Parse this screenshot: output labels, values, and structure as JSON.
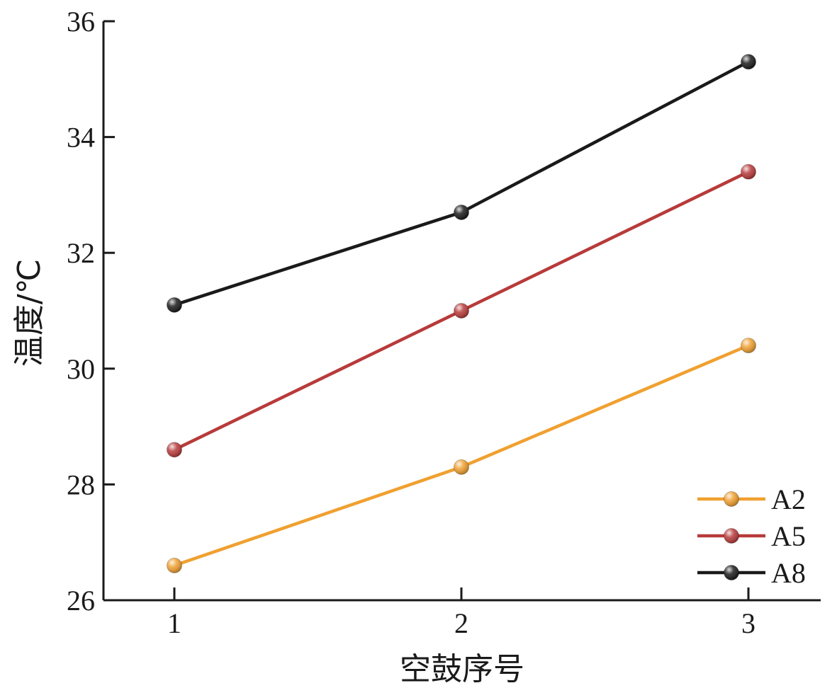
{
  "chart_data": {
    "type": "line",
    "xlabel": "空鼓序号",
    "ylabel": "温度/℃",
    "x": [
      1,
      2,
      3
    ],
    "x_tick_labels": [
      "1",
      "2",
      "3"
    ],
    "ylim": [
      26,
      36
    ],
    "y_ticks": [
      26,
      28,
      30,
      32,
      34,
      36
    ],
    "y_tick_labels": [
      "26",
      "28",
      "30",
      "32",
      "34",
      "36"
    ],
    "grid": false,
    "legend_position": "bottom-right",
    "series": [
      {
        "name": "A2",
        "color": "#f0a030",
        "values": [
          26.6,
          28.3,
          30.4
        ]
      },
      {
        "name": "A5",
        "color": "#b83a3a",
        "values": [
          28.6,
          31.0,
          33.4
        ]
      },
      {
        "name": "A8",
        "color": "#1a1a1a",
        "values": [
          31.1,
          32.7,
          35.3
        ]
      }
    ]
  }
}
